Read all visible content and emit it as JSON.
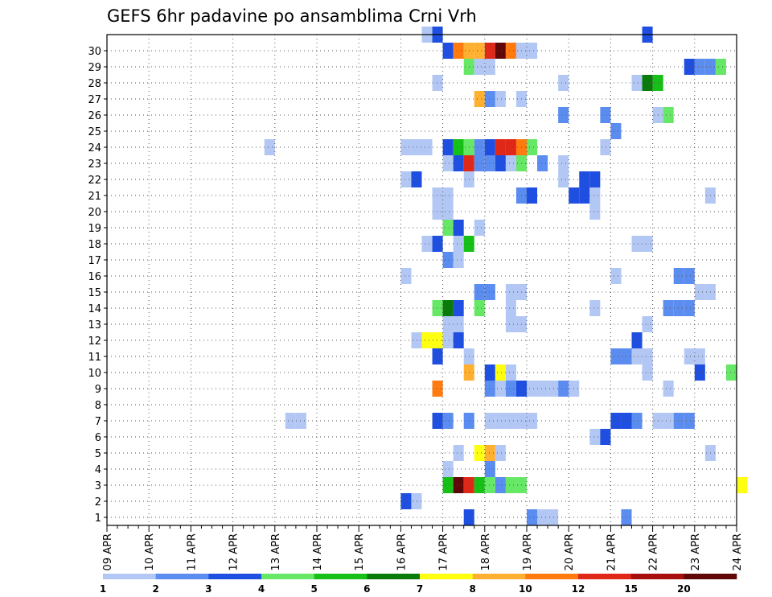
{
  "chart_data": {
    "type": "heatmap",
    "title": "GEFS 6hr padavine po ansamblima Crni Vrh",
    "x_tick_labels": [
      "09 APR",
      "10 APR",
      "11 APR",
      "12 APR",
      "13 APR",
      "14 APR",
      "15 APR",
      "16 APR",
      "17 APR",
      "18 APR",
      "19 APR",
      "20 APR",
      "21 APR",
      "22 APR",
      "23 APR",
      "24 APR"
    ],
    "y_tick_labels": [
      "1",
      "2",
      "3",
      "4",
      "5",
      "6",
      "7",
      "8",
      "9",
      "10",
      "11",
      "12",
      "13",
      "14",
      "15",
      "16",
      "17",
      "18",
      "19",
      "20",
      "21",
      "22",
      "23",
      "24",
      "25",
      "26",
      "27",
      "28",
      "29",
      "30"
    ],
    "time_step_hours": 6,
    "grid": "dotted",
    "colorbar": {
      "labels": [
        "1",
        "2",
        "3",
        "4",
        "5",
        "6",
        "7",
        "8",
        "10",
        "12",
        "15",
        "20"
      ],
      "colors": [
        "#b3c7f5",
        "#5b8cf0",
        "#1f4fe0",
        "#66e866",
        "#16c016",
        "#0a7a0a",
        "#ffff10",
        "#ffb030",
        "#ff7b10",
        "#e02818",
        "#a81010",
        "#600808"
      ]
    },
    "cells": [
      [
        30,
        30,
        0
      ],
      [
        30,
        31,
        2
      ],
      [
        30,
        51,
        2
      ],
      [
        29,
        32,
        2
      ],
      [
        29,
        33,
        8
      ],
      [
        29,
        34,
        7
      ],
      [
        29,
        35,
        7
      ],
      [
        29,
        36,
        9
      ],
      [
        29,
        37,
        11
      ],
      [
        29,
        38,
        8
      ],
      [
        29,
        39,
        0
      ],
      [
        29,
        40,
        0
      ],
      [
        28,
        34,
        3
      ],
      [
        28,
        35,
        0
      ],
      [
        28,
        36,
        0
      ],
      [
        28,
        55,
        2
      ],
      [
        28,
        56,
        1
      ],
      [
        28,
        57,
        1
      ],
      [
        28,
        58,
        3
      ],
      [
        27,
        31,
        0
      ],
      [
        27,
        43,
        0
      ],
      [
        27,
        50,
        0
      ],
      [
        27,
        51,
        5
      ],
      [
        27,
        52,
        4
      ],
      [
        26,
        35,
        7
      ],
      [
        26,
        36,
        1
      ],
      [
        26,
        37,
        0
      ],
      [
        26,
        39,
        0
      ],
      [
        25,
        43,
        1
      ],
      [
        25,
        47,
        1
      ],
      [
        25,
        52,
        0
      ],
      [
        25,
        53,
        3
      ],
      [
        24,
        48,
        1
      ],
      [
        23,
        15,
        0
      ],
      [
        23,
        28,
        0
      ],
      [
        23,
        29,
        0
      ],
      [
        23,
        30,
        0
      ],
      [
        23,
        32,
        2
      ],
      [
        23,
        33,
        4
      ],
      [
        23,
        34,
        3
      ],
      [
        23,
        35,
        1
      ],
      [
        23,
        36,
        2
      ],
      [
        23,
        37,
        9
      ],
      [
        23,
        38,
        9
      ],
      [
        23,
        39,
        8
      ],
      [
        23,
        40,
        3
      ],
      [
        23,
        47,
        0
      ],
      [
        22,
        32,
        0
      ],
      [
        22,
        33,
        2
      ],
      [
        22,
        34,
        9
      ],
      [
        22,
        35,
        1
      ],
      [
        22,
        36,
        1
      ],
      [
        22,
        37,
        2
      ],
      [
        22,
        38,
        0
      ],
      [
        22,
        39,
        3
      ],
      [
        22,
        41,
        1
      ],
      [
        22,
        43,
        0
      ],
      [
        21,
        28,
        0
      ],
      [
        21,
        29,
        2
      ],
      [
        21,
        34,
        0
      ],
      [
        21,
        43,
        0
      ],
      [
        21,
        45,
        2
      ],
      [
        21,
        46,
        2
      ],
      [
        20,
        31,
        0
      ],
      [
        20,
        32,
        0
      ],
      [
        20,
        39,
        1
      ],
      [
        20,
        40,
        2
      ],
      [
        20,
        44,
        2
      ],
      [
        20,
        45,
        2
      ],
      [
        20,
        46,
        0
      ],
      [
        20,
        57,
        0
      ],
      [
        19,
        31,
        0
      ],
      [
        19,
        32,
        0
      ],
      [
        19,
        46,
        0
      ],
      [
        18,
        32,
        3
      ],
      [
        18,
        33,
        2
      ],
      [
        18,
        35,
        0
      ],
      [
        17,
        30,
        0
      ],
      [
        17,
        31,
        2
      ],
      [
        17,
        33,
        0
      ],
      [
        17,
        34,
        4
      ],
      [
        17,
        50,
        0
      ],
      [
        17,
        51,
        0
      ],
      [
        16,
        32,
        1
      ],
      [
        16,
        33,
        0
      ],
      [
        15,
        28,
        0
      ],
      [
        15,
        48,
        0
      ],
      [
        15,
        54,
        1
      ],
      [
        15,
        55,
        1
      ],
      [
        14,
        35,
        1
      ],
      [
        14,
        36,
        1
      ],
      [
        14,
        38,
        0
      ],
      [
        14,
        39,
        0
      ],
      [
        14,
        56,
        0
      ],
      [
        14,
        57,
        0
      ],
      [
        13,
        31,
        3
      ],
      [
        13,
        32,
        5
      ],
      [
        13,
        33,
        2
      ],
      [
        13,
        35,
        3
      ],
      [
        13,
        38,
        0
      ],
      [
        13,
        46,
        0
      ],
      [
        13,
        53,
        1
      ],
      [
        13,
        54,
        1
      ],
      [
        13,
        55,
        1
      ],
      [
        12,
        32,
        0
      ],
      [
        12,
        33,
        0
      ],
      [
        12,
        38,
        0
      ],
      [
        12,
        39,
        0
      ],
      [
        12,
        51,
        0
      ],
      [
        11,
        29,
        0
      ],
      [
        11,
        30,
        6
      ],
      [
        11,
        31,
        6
      ],
      [
        11,
        32,
        0
      ],
      [
        11,
        33,
        2
      ],
      [
        11,
        50,
        2
      ],
      [
        10,
        31,
        2
      ],
      [
        10,
        34,
        0
      ],
      [
        10,
        48,
        1
      ],
      [
        10,
        49,
        1
      ],
      [
        10,
        50,
        0
      ],
      [
        10,
        51,
        0
      ],
      [
        10,
        55,
        0
      ],
      [
        10,
        56,
        0
      ],
      [
        9,
        34,
        7
      ],
      [
        9,
        36,
        2
      ],
      [
        9,
        37,
        6
      ],
      [
        9,
        38,
        0
      ],
      [
        9,
        51,
        0
      ],
      [
        9,
        56,
        2
      ],
      [
        9,
        59,
        3
      ],
      [
        8,
        31,
        8
      ],
      [
        8,
        36,
        1
      ],
      [
        8,
        37,
        0
      ],
      [
        8,
        38,
        1
      ],
      [
        8,
        39,
        2
      ],
      [
        8,
        40,
        0
      ],
      [
        8,
        41,
        0
      ],
      [
        8,
        42,
        0
      ],
      [
        8,
        43,
        1
      ],
      [
        8,
        44,
        0
      ],
      [
        8,
        53,
        0
      ],
      [
        6,
        17,
        0
      ],
      [
        6,
        18,
        0
      ],
      [
        6,
        31,
        2
      ],
      [
        6,
        32,
        1
      ],
      [
        6,
        34,
        1
      ],
      [
        6,
        36,
        0
      ],
      [
        6,
        37,
        0
      ],
      [
        6,
        38,
        0
      ],
      [
        6,
        39,
        0
      ],
      [
        6,
        40,
        0
      ],
      [
        6,
        48,
        2
      ],
      [
        6,
        49,
        2
      ],
      [
        6,
        50,
        1
      ],
      [
        6,
        52,
        0
      ],
      [
        6,
        53,
        0
      ],
      [
        6,
        54,
        1
      ],
      [
        6,
        55,
        1
      ],
      [
        5,
        46,
        0
      ],
      [
        5,
        47,
        2
      ],
      [
        4,
        33,
        0
      ],
      [
        4,
        35,
        6
      ],
      [
        4,
        36,
        7
      ],
      [
        4,
        37,
        0
      ],
      [
        4,
        57,
        0
      ],
      [
        3,
        32,
        0
      ],
      [
        3,
        36,
        1
      ],
      [
        2,
        32,
        4
      ],
      [
        2,
        33,
        11
      ],
      [
        2,
        34,
        9
      ],
      [
        2,
        35,
        4
      ],
      [
        2,
        36,
        3
      ],
      [
        2,
        37,
        1
      ],
      [
        2,
        38,
        3
      ],
      [
        2,
        39,
        3
      ],
      [
        2,
        60,
        6
      ],
      [
        1,
        28,
        2
      ],
      [
        1,
        29,
        0
      ],
      [
        0,
        34,
        2
      ],
      [
        0,
        40,
        1
      ],
      [
        0,
        41,
        0
      ],
      [
        0,
        42,
        0
      ],
      [
        0,
        49,
        1
      ]
    ]
  }
}
